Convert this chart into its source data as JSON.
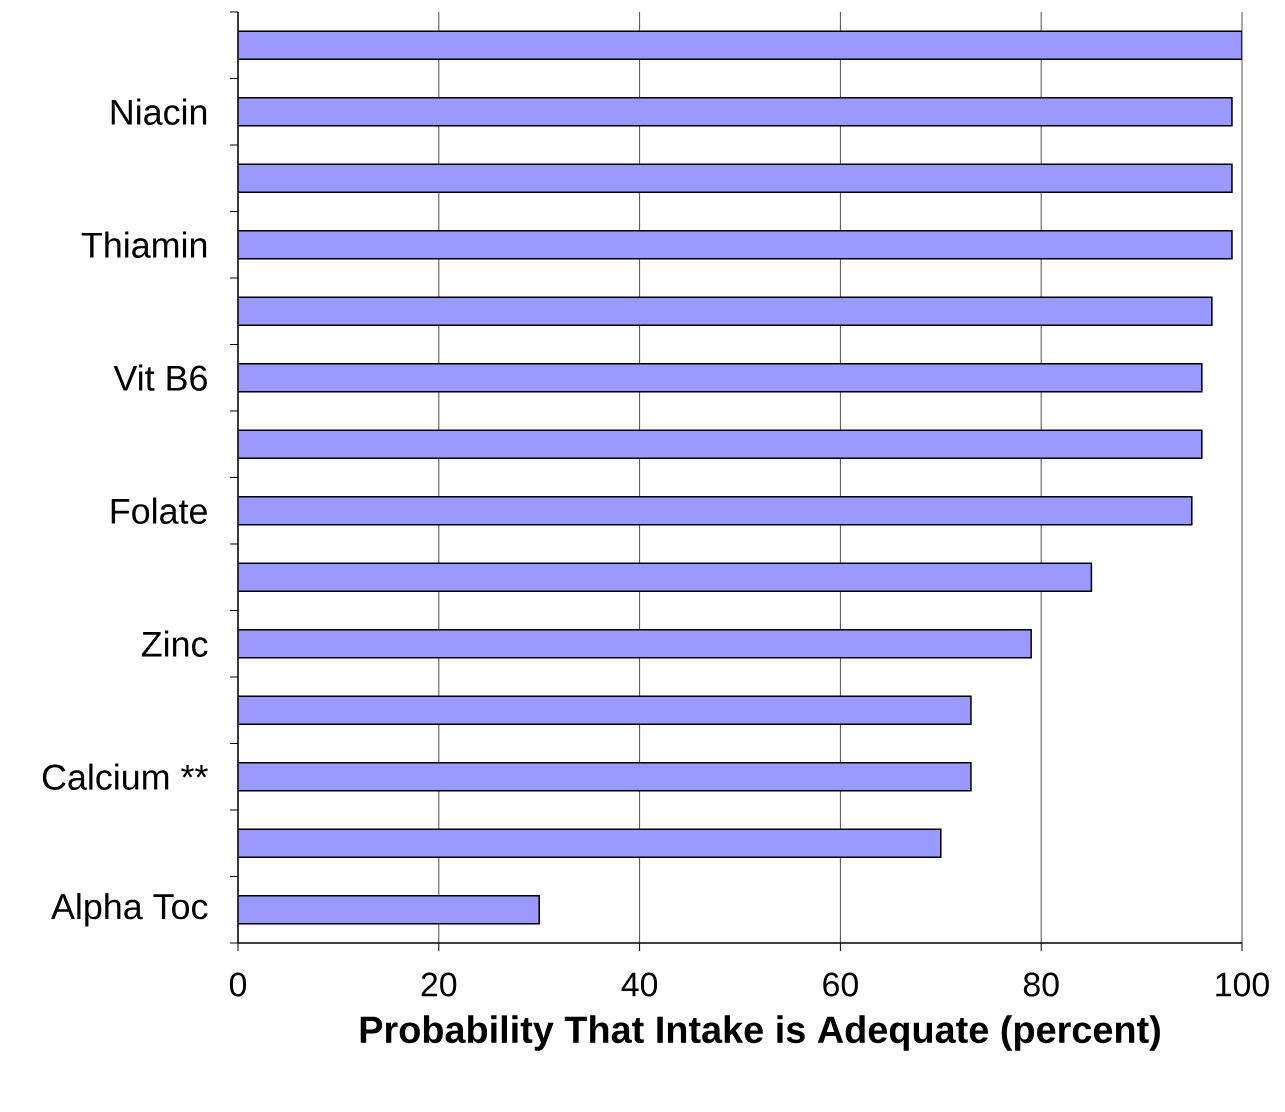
{
  "chart_data": {
    "type": "bar",
    "orientation": "horizontal",
    "xlabel": "Probability That Intake is Adequate (percent)",
    "categories": [
      null,
      "Niacin",
      null,
      "Thiamin",
      null,
      "Vit B6",
      null,
      "Folate",
      null,
      "Zinc",
      null,
      "Calcium **",
      null,
      "Alpha Toc"
    ],
    "values": [
      100,
      99,
      99,
      99,
      97,
      96,
      96,
      95,
      85,
      79,
      73,
      73,
      70,
      30
    ],
    "color": "#9999ff",
    "xlim": [
      0,
      100
    ],
    "xticks": [
      0,
      20,
      40,
      60,
      80,
      100
    ],
    "grid": "x"
  }
}
